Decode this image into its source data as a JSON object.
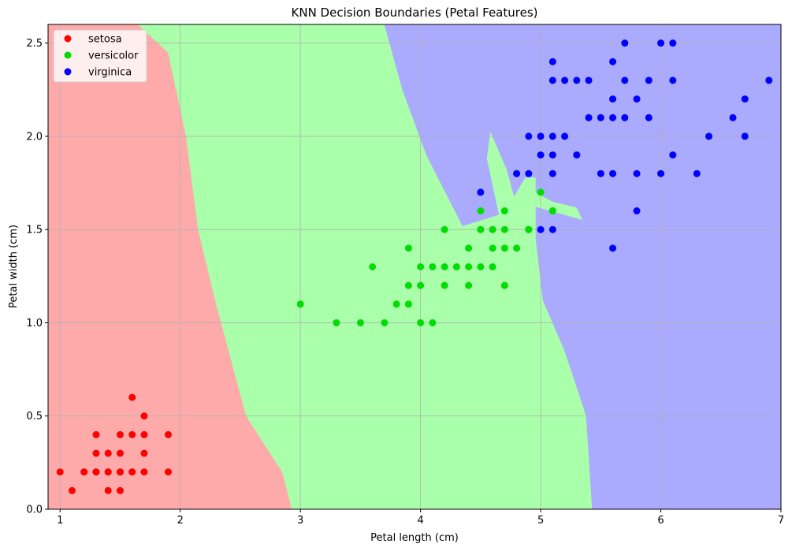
{
  "chart_data": {
    "type": "scatter",
    "title": "KNN Decision Boundaries (Petal Features)",
    "xlabel": "Petal length (cm)",
    "ylabel": "Petal width (cm)",
    "xlim": [
      0.9,
      7.0
    ],
    "ylim": [
      0.0,
      2.6
    ],
    "x_ticks": [
      1,
      2,
      3,
      4,
      5,
      6,
      7
    ],
    "y_ticks": [
      0.0,
      0.5,
      1.0,
      1.5,
      2.0,
      2.5
    ],
    "x_tick_labels": [
      "1",
      "2",
      "3",
      "4",
      "5",
      "6",
      "7"
    ],
    "y_tick_labels": [
      "0.0",
      "0.5",
      "1.0",
      "1.5",
      "2.0",
      "2.5"
    ],
    "grid": true,
    "legend_position": "top-left",
    "regions": [
      {
        "class": "setosa",
        "color": "#ffaaaa",
        "polygon": [
          [
            0.9,
            0.0
          ],
          [
            2.93,
            0.0
          ],
          [
            2.85,
            0.2
          ],
          [
            2.55,
            0.5
          ],
          [
            2.3,
            1.1
          ],
          [
            2.15,
            1.5
          ],
          [
            2.05,
            2.0
          ],
          [
            1.9,
            2.45
          ],
          [
            1.65,
            2.6
          ],
          [
            0.9,
            2.6
          ]
        ]
      },
      {
        "class": "versicolor",
        "color": "#aaffaa",
        "polygon": [
          [
            2.93,
            0.0
          ],
          [
            5.43,
            0.0
          ],
          [
            5.38,
            0.5
          ],
          [
            5.2,
            0.85
          ],
          [
            5.02,
            1.12
          ],
          [
            4.96,
            1.45
          ],
          [
            4.96,
            1.62
          ],
          [
            5.35,
            1.55
          ],
          [
            5.3,
            1.62
          ],
          [
            5.1,
            1.65
          ],
          [
            4.96,
            1.7
          ],
          [
            4.96,
            1.78
          ],
          [
            4.87,
            1.78
          ],
          [
            4.78,
            1.68
          ],
          [
            4.72,
            1.82
          ],
          [
            4.58,
            2.03
          ],
          [
            4.55,
            1.88
          ],
          [
            4.6,
            1.73
          ],
          [
            4.65,
            1.58
          ],
          [
            4.35,
            1.52
          ],
          [
            4.05,
            1.9
          ],
          [
            3.85,
            2.25
          ],
          [
            3.7,
            2.6
          ],
          [
            1.65,
            2.6
          ],
          [
            1.9,
            2.45
          ],
          [
            2.05,
            2.0
          ],
          [
            2.15,
            1.5
          ],
          [
            2.3,
            1.1
          ],
          [
            2.55,
            0.5
          ],
          [
            2.85,
            0.2
          ]
        ]
      },
      {
        "class": "virginica",
        "color": "#aaaaff",
        "polygon": [
          [
            5.43,
            0.0
          ],
          [
            7.0,
            0.0
          ],
          [
            7.0,
            2.6
          ],
          [
            3.7,
            2.6
          ],
          [
            3.85,
            2.25
          ],
          [
            4.05,
            1.9
          ],
          [
            4.35,
            1.52
          ],
          [
            4.65,
            1.58
          ],
          [
            4.6,
            1.73
          ],
          [
            4.55,
            1.88
          ],
          [
            4.58,
            2.03
          ],
          [
            4.72,
            1.82
          ],
          [
            4.78,
            1.68
          ],
          [
            4.87,
            1.78
          ],
          [
            4.96,
            1.78
          ],
          [
            4.96,
            1.7
          ],
          [
            5.1,
            1.65
          ],
          [
            5.3,
            1.62
          ],
          [
            5.35,
            1.55
          ],
          [
            4.96,
            1.62
          ],
          [
            4.96,
            1.45
          ],
          [
            5.02,
            1.12
          ],
          [
            5.2,
            0.85
          ],
          [
            5.38,
            0.5
          ]
        ]
      }
    ],
    "series": [
      {
        "name": "setosa",
        "color": "#ff0000",
        "x": [
          1.0,
          1.1,
          1.2,
          1.2,
          1.3,
          1.3,
          1.3,
          1.3,
          1.4,
          1.4,
          1.4,
          1.4,
          1.5,
          1.5,
          1.5,
          1.5,
          1.5,
          1.6,
          1.6,
          1.6,
          1.6,
          1.7,
          1.7,
          1.7,
          1.7,
          1.9,
          1.9
        ],
        "y": [
          0.2,
          0.1,
          0.2,
          0.2,
          0.2,
          0.3,
          0.4,
          0.2,
          0.2,
          0.1,
          0.3,
          0.2,
          0.2,
          0.1,
          0.4,
          0.3,
          0.2,
          0.2,
          0.4,
          0.6,
          0.2,
          0.2,
          0.3,
          0.5,
          0.4,
          0.2,
          0.4
        ]
      },
      {
        "name": "versicolor",
        "color": "#00dd00",
        "x": [
          3.0,
          3.3,
          3.5,
          3.6,
          3.7,
          3.8,
          3.9,
          3.9,
          3.9,
          4.0,
          4.0,
          4.0,
          4.1,
          4.1,
          4.2,
          4.2,
          4.2,
          4.3,
          4.4,
          4.4,
          4.4,
          4.5,
          4.5,
          4.5,
          4.5,
          4.6,
          4.6,
          4.6,
          4.7,
          4.7,
          4.7,
          4.7,
          4.8,
          4.8,
          4.9,
          4.9,
          5.0,
          5.1,
          5.1
        ],
        "y": [
          1.1,
          1.0,
          1.0,
          1.3,
          1.0,
          1.1,
          1.1,
          1.2,
          1.4,
          1.0,
          1.2,
          1.3,
          1.0,
          1.3,
          1.2,
          1.3,
          1.5,
          1.3,
          1.2,
          1.3,
          1.4,
          1.3,
          1.5,
          1.6,
          1.5,
          1.3,
          1.4,
          1.5,
          1.2,
          1.4,
          1.5,
          1.6,
          1.4,
          1.8,
          1.5,
          1.5,
          1.7,
          1.6,
          1.6
        ]
      },
      {
        "name": "virginica",
        "color": "#0000ff",
        "x": [
          4.5,
          4.8,
          4.9,
          4.9,
          5.0,
          5.0,
          5.0,
          5.1,
          5.1,
          5.1,
          5.1,
          5.1,
          5.1,
          5.2,
          5.2,
          5.3,
          5.3,
          5.4,
          5.4,
          5.5,
          5.5,
          5.6,
          5.6,
          5.6,
          5.6,
          5.6,
          5.7,
          5.7,
          5.7,
          5.8,
          5.8,
          5.8,
          5.9,
          5.9,
          6.0,
          6.0,
          6.1,
          6.1,
          6.1,
          6.3,
          6.4,
          6.6,
          6.7,
          6.7,
          6.9
        ],
        "y": [
          1.7,
          1.8,
          2.0,
          1.8,
          2.0,
          1.9,
          1.5,
          2.4,
          2.3,
          2.0,
          1.9,
          1.8,
          1.5,
          2.3,
          2.0,
          2.3,
          1.9,
          2.3,
          2.1,
          2.1,
          1.8,
          2.4,
          2.2,
          2.1,
          1.8,
          1.4,
          2.5,
          2.3,
          2.1,
          2.2,
          1.8,
          1.6,
          2.3,
          2.1,
          2.5,
          1.8,
          2.5,
          2.3,
          1.9,
          1.8,
          2.0,
          2.1,
          2.2,
          2.0,
          2.3
        ]
      }
    ]
  }
}
